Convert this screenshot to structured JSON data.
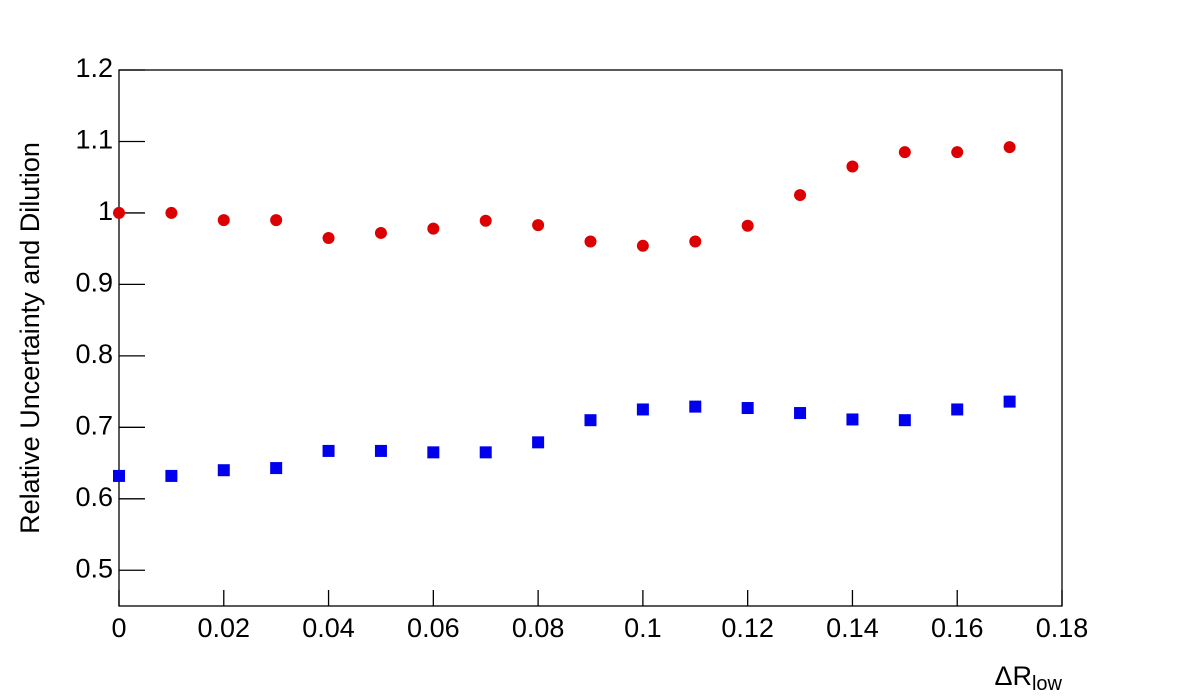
{
  "chart_data": {
    "type": "scatter",
    "y_label": "Relative Uncertainty and Dilution",
    "x_label": {
      "text": "ΔR",
      "subscript": "low"
    },
    "x": [
      0,
      0.01,
      0.02,
      0.03,
      0.04,
      0.05,
      0.06,
      0.07,
      0.08,
      0.09,
      0.1,
      0.11,
      0.12,
      0.13,
      0.14,
      0.15,
      0.16,
      0.17
    ],
    "series": [
      {
        "color": "#dd0000",
        "marker": "circle",
        "values": [
          1.0,
          1.0,
          0.99,
          0.99,
          0.965,
          0.972,
          0.978,
          0.989,
          0.983,
          0.96,
          0.954,
          0.96,
          0.982,
          1.025,
          1.065,
          1.085,
          1.085,
          1.092
        ]
      },
      {
        "color": "#0000ee",
        "marker": "square",
        "values": [
          0.632,
          0.632,
          0.64,
          0.643,
          0.667,
          0.667,
          0.665,
          0.665,
          0.679,
          0.71,
          0.725,
          0.729,
          0.727,
          0.72,
          0.711,
          0.71,
          0.725,
          0.736
        ]
      }
    ],
    "xlim": [
      0,
      0.18
    ],
    "xticks": [
      0,
      0.02,
      0.04,
      0.06,
      0.08,
      0.1,
      0.12,
      0.14,
      0.16,
      0.18
    ],
    "ylim": [
      0.45,
      1.2
    ],
    "yticks": [
      0.5,
      0.6,
      0.7,
      0.8,
      0.9,
      1,
      1.1,
      1.2
    ]
  }
}
